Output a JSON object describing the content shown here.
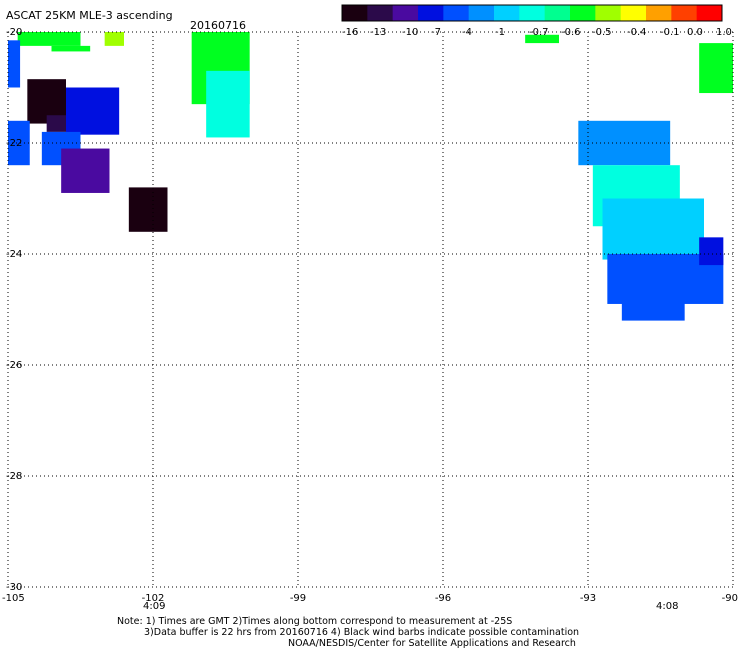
{
  "header": {
    "title": "ASCAT 25KM MLE-3 ascending",
    "date": "20160716"
  },
  "colorbar": {
    "labels": [
      "-16",
      "-13",
      "-10",
      "-7",
      "-4",
      "-1",
      "-0.7",
      "-0.6",
      "-0.5",
      "-0.4",
      "-0.1",
      "0.0",
      "1.0"
    ],
    "colors": [
      "#1a0010",
      "#2b0a4a",
      "#4a0aa0",
      "#0010e0",
      "#0050ff",
      "#0090ff",
      "#00d0ff",
      "#00ffe0",
      "#00ff90",
      "#00ff20",
      "#a0ff00",
      "#ffff00",
      "#ffa000",
      "#ff4000",
      "#ff0000"
    ]
  },
  "axes": {
    "y_labels": [
      "-20",
      "-22",
      "-24",
      "-26",
      "-28",
      "-30"
    ],
    "x_labels": [
      "-105",
      "-102",
      "-99",
      "-96",
      "-93",
      "-90"
    ],
    "x_range": [
      -105,
      -90
    ],
    "y_range": [
      -30,
      -20
    ],
    "time_labels": [
      "4:09",
      "4:08"
    ],
    "time_color": "#cc0000"
  },
  "notes": {
    "line1": "Note: 1) Times are GMT 2)Times along bottom correspond to measurement at -25S",
    "line2": "3)Data buffer is 22 hrs from 20160716 4) Black wind barbs indicate possible contamination",
    "line3": "NOAA/NESDIS/Center for Satellite Applications and Research"
  },
  "chart_data": {
    "type": "heatmap",
    "title": "ASCAT 25KM MLE-3 ascending",
    "subtitle": "20160716",
    "xlabel": "",
    "ylabel": "",
    "xlim": [
      -105,
      -90
    ],
    "ylim": [
      -30,
      -20
    ],
    "grid": true,
    "cells": [
      {
        "lon": [
          -104.8,
          -103.5
        ],
        "lat": [
          -20.25,
          -20.0
        ],
        "color": "#00ff20"
      },
      {
        "lon": [
          -103.0,
          -102.6
        ],
        "lat": [
          -20.25,
          -20.0
        ],
        "color": "#a0ff00"
      },
      {
        "lon": [
          -104.1,
          -103.3
        ],
        "lat": [
          -20.35,
          -20.25
        ],
        "color": "#00ff20"
      },
      {
        "lon": [
          -105.0,
          -104.75
        ],
        "lat": [
          -21.0,
          -20.15
        ],
        "color": "#0050ff"
      },
      {
        "lon": [
          -104.6,
          -103.8
        ],
        "lat": [
          -21.65,
          -20.85
        ],
        "color": "#1a0010"
      },
      {
        "lon": [
          -103.8,
          -102.7
        ],
        "lat": [
          -21.85,
          -21.0
        ],
        "color": "#0010e0"
      },
      {
        "lon": [
          -104.2,
          -103.8
        ],
        "lat": [
          -21.8,
          -21.5
        ],
        "color": "#2b0a4a"
      },
      {
        "lon": [
          -105.0,
          -104.55
        ],
        "lat": [
          -22.4,
          -21.6
        ],
        "color": "#0050ff"
      },
      {
        "lon": [
          -104.3,
          -103.5
        ],
        "lat": [
          -22.4,
          -21.8
        ],
        "color": "#0050ff"
      },
      {
        "lon": [
          -103.9,
          -102.9
        ],
        "lat": [
          -22.9,
          -22.1
        ],
        "color": "#4a0aa0"
      },
      {
        "lon": [
          -102.5,
          -101.7
        ],
        "lat": [
          -23.6,
          -22.8
        ],
        "color": "#1a0010"
      },
      {
        "lon": [
          -101.2,
          -100.0
        ],
        "lat": [
          -21.3,
          -20.0
        ],
        "color": "#00ff20"
      },
      {
        "lon": [
          -100.9,
          -100.0
        ],
        "lat": [
          -21.9,
          -20.7
        ],
        "color": "#00ffe0"
      },
      {
        "lon": [
          -94.3,
          -93.6
        ],
        "lat": [
          -20.2,
          -20.05
        ],
        "color": "#00ff20"
      },
      {
        "lon": [
          -90.7,
          -90.0
        ],
        "lat": [
          -21.1,
          -20.2
        ],
        "color": "#00ff20"
      },
      {
        "lon": [
          -93.2,
          -91.3
        ],
        "lat": [
          -22.4,
          -21.6
        ],
        "color": "#0090ff"
      },
      {
        "lon": [
          -92.9,
          -91.1
        ],
        "lat": [
          -23.5,
          -22.4
        ],
        "color": "#00ffe0"
      },
      {
        "lon": [
          -92.7,
          -90.6
        ],
        "lat": [
          -24.1,
          -23.0
        ],
        "color": "#00d0ff"
      },
      {
        "lon": [
          -92.6,
          -90.2
        ],
        "lat": [
          -24.9,
          -24.0
        ],
        "color": "#0050ff"
      },
      {
        "lon": [
          -92.3,
          -91.0
        ],
        "lat": [
          -25.2,
          -24.7
        ],
        "color": "#0050ff"
      },
      {
        "lon": [
          -90.7,
          -90.2
        ],
        "lat": [
          -24.2,
          -23.7
        ],
        "color": "#0010e0"
      }
    ]
  }
}
